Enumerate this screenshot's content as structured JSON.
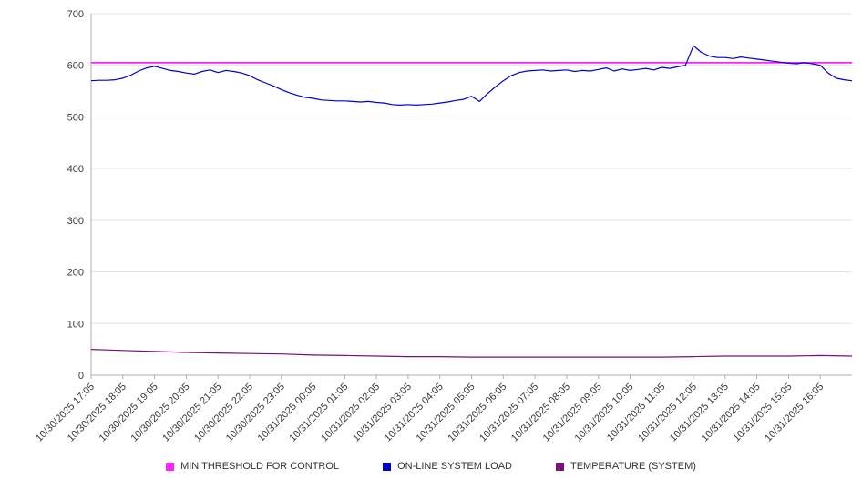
{
  "chart_data": {
    "type": "line",
    "title": "",
    "xlabel": "",
    "ylabel": "",
    "ylim": [
      0,
      700
    ],
    "yticks": [
      0,
      100,
      200,
      300,
      400,
      500,
      600,
      700
    ],
    "grid": "horizontal",
    "legend_position": "bottom",
    "x_span_hours": 24,
    "x_labels": [
      "10/30/2025 17:05",
      "10/30/2025 18:05",
      "10/30/2025 19:05",
      "10/30/2025 20:05",
      "10/30/2025 21:05",
      "10/30/2025 22:05",
      "10/30/2025 23:05",
      "10/31/2025 00:05",
      "10/31/2025 01:05",
      "10/31/2025 02:05",
      "10/31/2025 03:05",
      "10/31/2025 04:05",
      "10/31/2025 05:05",
      "10/31/2025 06:05",
      "10/31/2025 07:05",
      "10/31/2025 08:05",
      "10/31/2025 09:05",
      "10/31/2025 10:05",
      "10/31/2025 11:05",
      "10/31/2025 12:05",
      "10/31/2025 13:05",
      "10/31/2025 14:05",
      "10/31/2025 15:05",
      "10/31/2025 16:05"
    ],
    "series": [
      {
        "name": "MIN THRESHOLD FOR CONTROL",
        "color": "#ff22ff",
        "type": "constant",
        "value": 605
      },
      {
        "name": "ON-LINE SYSTEM LOAD",
        "color": "#0000cd",
        "type": "line",
        "x_step_hours": 0.25,
        "values": [
          570,
          571,
          571,
          572,
          575,
          581,
          589,
          595,
          598,
          594,
          590,
          588,
          585,
          583,
          588,
          591,
          586,
          590,
          588,
          585,
          580,
          572,
          566,
          560,
          553,
          547,
          542,
          538,
          536,
          533,
          532,
          531,
          531,
          530,
          529,
          530,
          528,
          527,
          524,
          523,
          524,
          523,
          524,
          525,
          527,
          529,
          532,
          534,
          540,
          530,
          545,
          558,
          570,
          580,
          586,
          589,
          590,
          591,
          589,
          590,
          591,
          588,
          590,
          589,
          592,
          595,
          589,
          593,
          590,
          592,
          594,
          591,
          596,
          594,
          597,
          600,
          638,
          625,
          618,
          615,
          615,
          613,
          616,
          614,
          612,
          610,
          608,
          606,
          604,
          603,
          605,
          603,
          600,
          585,
          575,
          572,
          570
        ]
      },
      {
        "name": "TEMPERATURE (SYSTEM)",
        "color": "#7a0f7a",
        "type": "line",
        "x_step_hours": 1,
        "values": [
          50,
          48,
          46,
          44,
          43,
          42,
          41,
          39,
          38,
          37,
          36,
          36,
          35,
          35,
          35,
          35,
          35,
          35,
          35,
          36,
          37,
          37,
          37,
          38,
          37
        ]
      }
    ]
  }
}
